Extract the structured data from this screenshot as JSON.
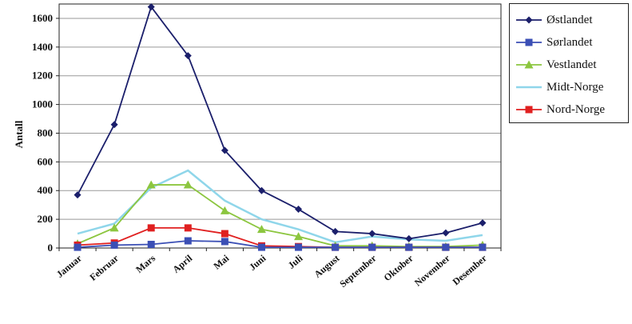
{
  "chart_data": {
    "type": "line",
    "title": "",
    "xlabel": "",
    "ylabel": "Antall",
    "ylim": [
      0,
      1700
    ],
    "yticks": [
      0,
      200,
      400,
      600,
      800,
      1000,
      1200,
      1400,
      1600
    ],
    "grid": "horizontal",
    "legend_position": "right",
    "categories": [
      "Januar",
      "Februar",
      "Mars",
      "April",
      "Mai",
      "Juni",
      "Juli",
      "August",
      "September",
      "Oktober",
      "November",
      "Desember"
    ],
    "series": [
      {
        "name": "Østlandet",
        "color": "#1b1f6b",
        "marker": "diamond",
        "values": [
          370,
          860,
          1680,
          1340,
          680,
          400,
          270,
          115,
          100,
          65,
          105,
          175
        ]
      },
      {
        "name": "Sørlandet",
        "color": "#3b4fb5",
        "marker": "square",
        "values": [
          5,
          20,
          25,
          50,
          45,
          5,
          5,
          5,
          5,
          5,
          5,
          5
        ]
      },
      {
        "name": "Vestlandet",
        "color": "#8cc63f",
        "marker": "triangle",
        "values": [
          30,
          140,
          440,
          440,
          260,
          130,
          80,
          15,
          15,
          10,
          10,
          20
        ]
      },
      {
        "name": "Midt-Norge",
        "color": "#8fd6ea",
        "marker": "none",
        "values": [
          100,
          170,
          420,
          540,
          330,
          200,
          130,
          40,
          80,
          60,
          50,
          90
        ]
      },
      {
        "name": "Nord-Norge",
        "color": "#e02020",
        "marker": "square",
        "values": [
          20,
          35,
          140,
          140,
          100,
          15,
          10,
          5,
          5,
          5,
          5,
          5
        ]
      }
    ]
  }
}
